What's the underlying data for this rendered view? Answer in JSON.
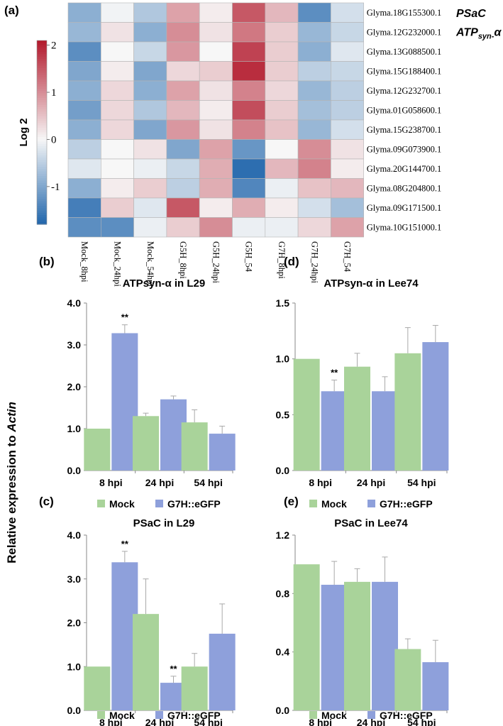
{
  "colors": {
    "neg": "#2166ac",
    "mid": "#f7f7f7",
    "pos": "#b2182b",
    "mock": "#a9d39a",
    "g7h": "#8ea0db",
    "errbar": "#a9a9a9",
    "axis": "#8a8a8a"
  },
  "panel_labels": [
    "(a)",
    "(b)",
    "(c)",
    "(d)",
    "(e)"
  ],
  "y_axis_label_main": "Relative expression to ",
  "y_axis_label_italic": "Actin",
  "chart_data": [
    {
      "id": "a",
      "type": "heatmap",
      "title": "",
      "colorbar_label": "Log 2",
      "colorbar_ticks": [
        2,
        1,
        0,
        -1
      ],
      "colorbar_tick_labels": [
        "2",
        "1",
        "0",
        "-1"
      ],
      "vmin": -1.8,
      "vmax": 2.1,
      "columns": [
        "Mock_8hpi",
        "Mock_24hpi",
        "Mock_54hpi",
        "G5H_8hpi",
        "G5H_24hpi",
        "G5H_54",
        "G7H_8hpi",
        "G7H_24hpi",
        "G7H_54"
      ],
      "rows": [
        "Glyma.18G155300.1",
        "Glyma.12G232000.1",
        "Glyma.13G088500.1",
        "Glyma.15G188400.1",
        "Glyma.12G232700.1",
        "Glyma.01G058600.1",
        "Glyma.15G238700.1",
        "Glyma.09G073900.1",
        "Glyma.20G144700.1",
        "Glyma.08G204800.1",
        "Glyma.09G171500.1",
        "Glyma.10G151000.1"
      ],
      "row_annotations": [
        {
          "row": 0,
          "main": "PSaC",
          "sub": ""
        },
        {
          "row": 1,
          "main": "ATP",
          "sub": "syn-",
          "tail": "α"
        }
      ],
      "values": [
        [
          -0.9,
          -0.05,
          -0.6,
          0.8,
          0.1,
          1.5,
          0.6,
          -1.3,
          -0.3
        ],
        [
          -0.8,
          0.2,
          -0.9,
          1.0,
          0.2,
          1.2,
          0.4,
          -0.8,
          -0.4
        ],
        [
          -1.3,
          0.0,
          -0.4,
          0.9,
          0.0,
          1.7,
          0.4,
          -0.9,
          -0.2
        ],
        [
          -1.0,
          0.1,
          -1.0,
          0.3,
          0.4,
          1.9,
          0.4,
          -0.5,
          -0.4
        ],
        [
          -0.9,
          0.3,
          -0.9,
          0.8,
          0.2,
          1.1,
          0.3,
          -0.8,
          -0.5
        ],
        [
          -1.1,
          0.3,
          -0.6,
          0.6,
          0.1,
          1.6,
          0.4,
          -0.7,
          -0.5
        ],
        [
          -0.9,
          0.3,
          -1.0,
          0.9,
          0.2,
          1.1,
          0.5,
          -0.8,
          -0.3
        ],
        [
          -0.5,
          0.0,
          0.2,
          -1.0,
          0.8,
          -1.2,
          0.0,
          1.0,
          0.2
        ],
        [
          -0.2,
          0.0,
          -0.1,
          -0.4,
          0.7,
          -1.7,
          0.6,
          1.1,
          0.1
        ],
        [
          -0.9,
          0.1,
          0.4,
          -0.5,
          0.7,
          -1.4,
          -0.1,
          0.5,
          0.6
        ],
        [
          -1.5,
          0.4,
          -0.2,
          1.5,
          0.1,
          0.7,
          0.1,
          -0.3,
          -0.7
        ],
        [
          -1.3,
          -1.3,
          -0.1,
          0.4,
          1.0,
          -0.1,
          -0.1,
          0.3,
          0.8
        ]
      ]
    },
    {
      "id": "b",
      "type": "bar",
      "title": "ATPsyn-α in L29",
      "categories": [
        "8 hpi",
        "24 hpi",
        "54 hpi"
      ],
      "series": [
        {
          "name": "Mock",
          "values": [
            1.0,
            1.3,
            1.15
          ],
          "errors": [
            0.0,
            0.07,
            0.3
          ]
        },
        {
          "name": "G7H::eGFP",
          "values": [
            3.28,
            1.7,
            0.88
          ],
          "errors": [
            0.2,
            0.08,
            0.18
          ]
        }
      ],
      "ylim": [
        0,
        4.0
      ],
      "yticks": [
        0,
        1,
        2,
        3,
        4
      ],
      "ytick_labels": [
        "0.0",
        "1.0",
        "2.0",
        "3.0",
        "4.0"
      ],
      "annotations": [
        {
          "category": 0,
          "series": 1,
          "text": "**"
        }
      ],
      "legend": [
        "Mock",
        "G7H::eGFP"
      ]
    },
    {
      "id": "c",
      "type": "bar",
      "title": "PSaC in L29",
      "categories": [
        "8 hpi",
        "24 hpi",
        "54 hpi"
      ],
      "series": [
        {
          "name": "Mock",
          "values": [
            1.0,
            2.2,
            1.0
          ],
          "errors": [
            0.0,
            0.8,
            0.3
          ]
        },
        {
          "name": "G7H::eGFP",
          "values": [
            3.38,
            0.63,
            1.75
          ],
          "errors": [
            0.25,
            0.15,
            0.68
          ]
        }
      ],
      "ylim": [
        0,
        4.0
      ],
      "yticks": [
        0,
        1,
        2,
        3,
        4
      ],
      "ytick_labels": [
        "0.0",
        "1.0",
        "2.0",
        "3.0",
        "4.0"
      ],
      "annotations": [
        {
          "category": 0,
          "series": 1,
          "text": "**"
        },
        {
          "category": 1,
          "series": 1,
          "text": "**"
        }
      ],
      "legend": [
        "Mock",
        "G7H::eGFP"
      ]
    },
    {
      "id": "d",
      "type": "bar",
      "title": "ATPsyn-α in Lee74",
      "categories": [
        "8 hpi",
        "24 hpi",
        "54 hpi"
      ],
      "series": [
        {
          "name": "Mock",
          "values": [
            1.0,
            0.93,
            1.05
          ],
          "errors": [
            0.0,
            0.12,
            0.23
          ]
        },
        {
          "name": "G7H::eGFP",
          "values": [
            0.71,
            0.71,
            1.15
          ],
          "errors": [
            0.1,
            0.13,
            0.15
          ]
        }
      ],
      "ylim": [
        0,
        1.5
      ],
      "yticks": [
        0,
        0.5,
        1.0,
        1.5
      ],
      "ytick_labels": [
        "0.0",
        "0.5",
        "1.0",
        "1.5"
      ],
      "annotations": [
        {
          "category": 0,
          "series": 1,
          "text": "**"
        }
      ],
      "legend": [
        "Mock",
        "G7H::eGFP"
      ]
    },
    {
      "id": "e",
      "type": "bar",
      "title": "PSaC in Lee74",
      "categories": [
        "8 hpi",
        "24 hpi",
        "54 hpi"
      ],
      "series": [
        {
          "name": "Mock",
          "values": [
            1.0,
            0.88,
            0.42
          ],
          "errors": [
            0.0,
            0.09,
            0.07
          ]
        },
        {
          "name": "G7H::eGFP",
          "values": [
            0.86,
            0.88,
            0.33
          ],
          "errors": [
            0.16,
            0.17,
            0.15
          ]
        }
      ],
      "ylim": [
        0,
        1.2
      ],
      "yticks": [
        0,
        0.4,
        0.8,
        1.2
      ],
      "ytick_labels": [
        "0.0",
        "0.4",
        "0.8",
        "1.2"
      ],
      "annotations": [],
      "legend": [
        "Mock",
        "G7H::eGFP"
      ]
    }
  ]
}
